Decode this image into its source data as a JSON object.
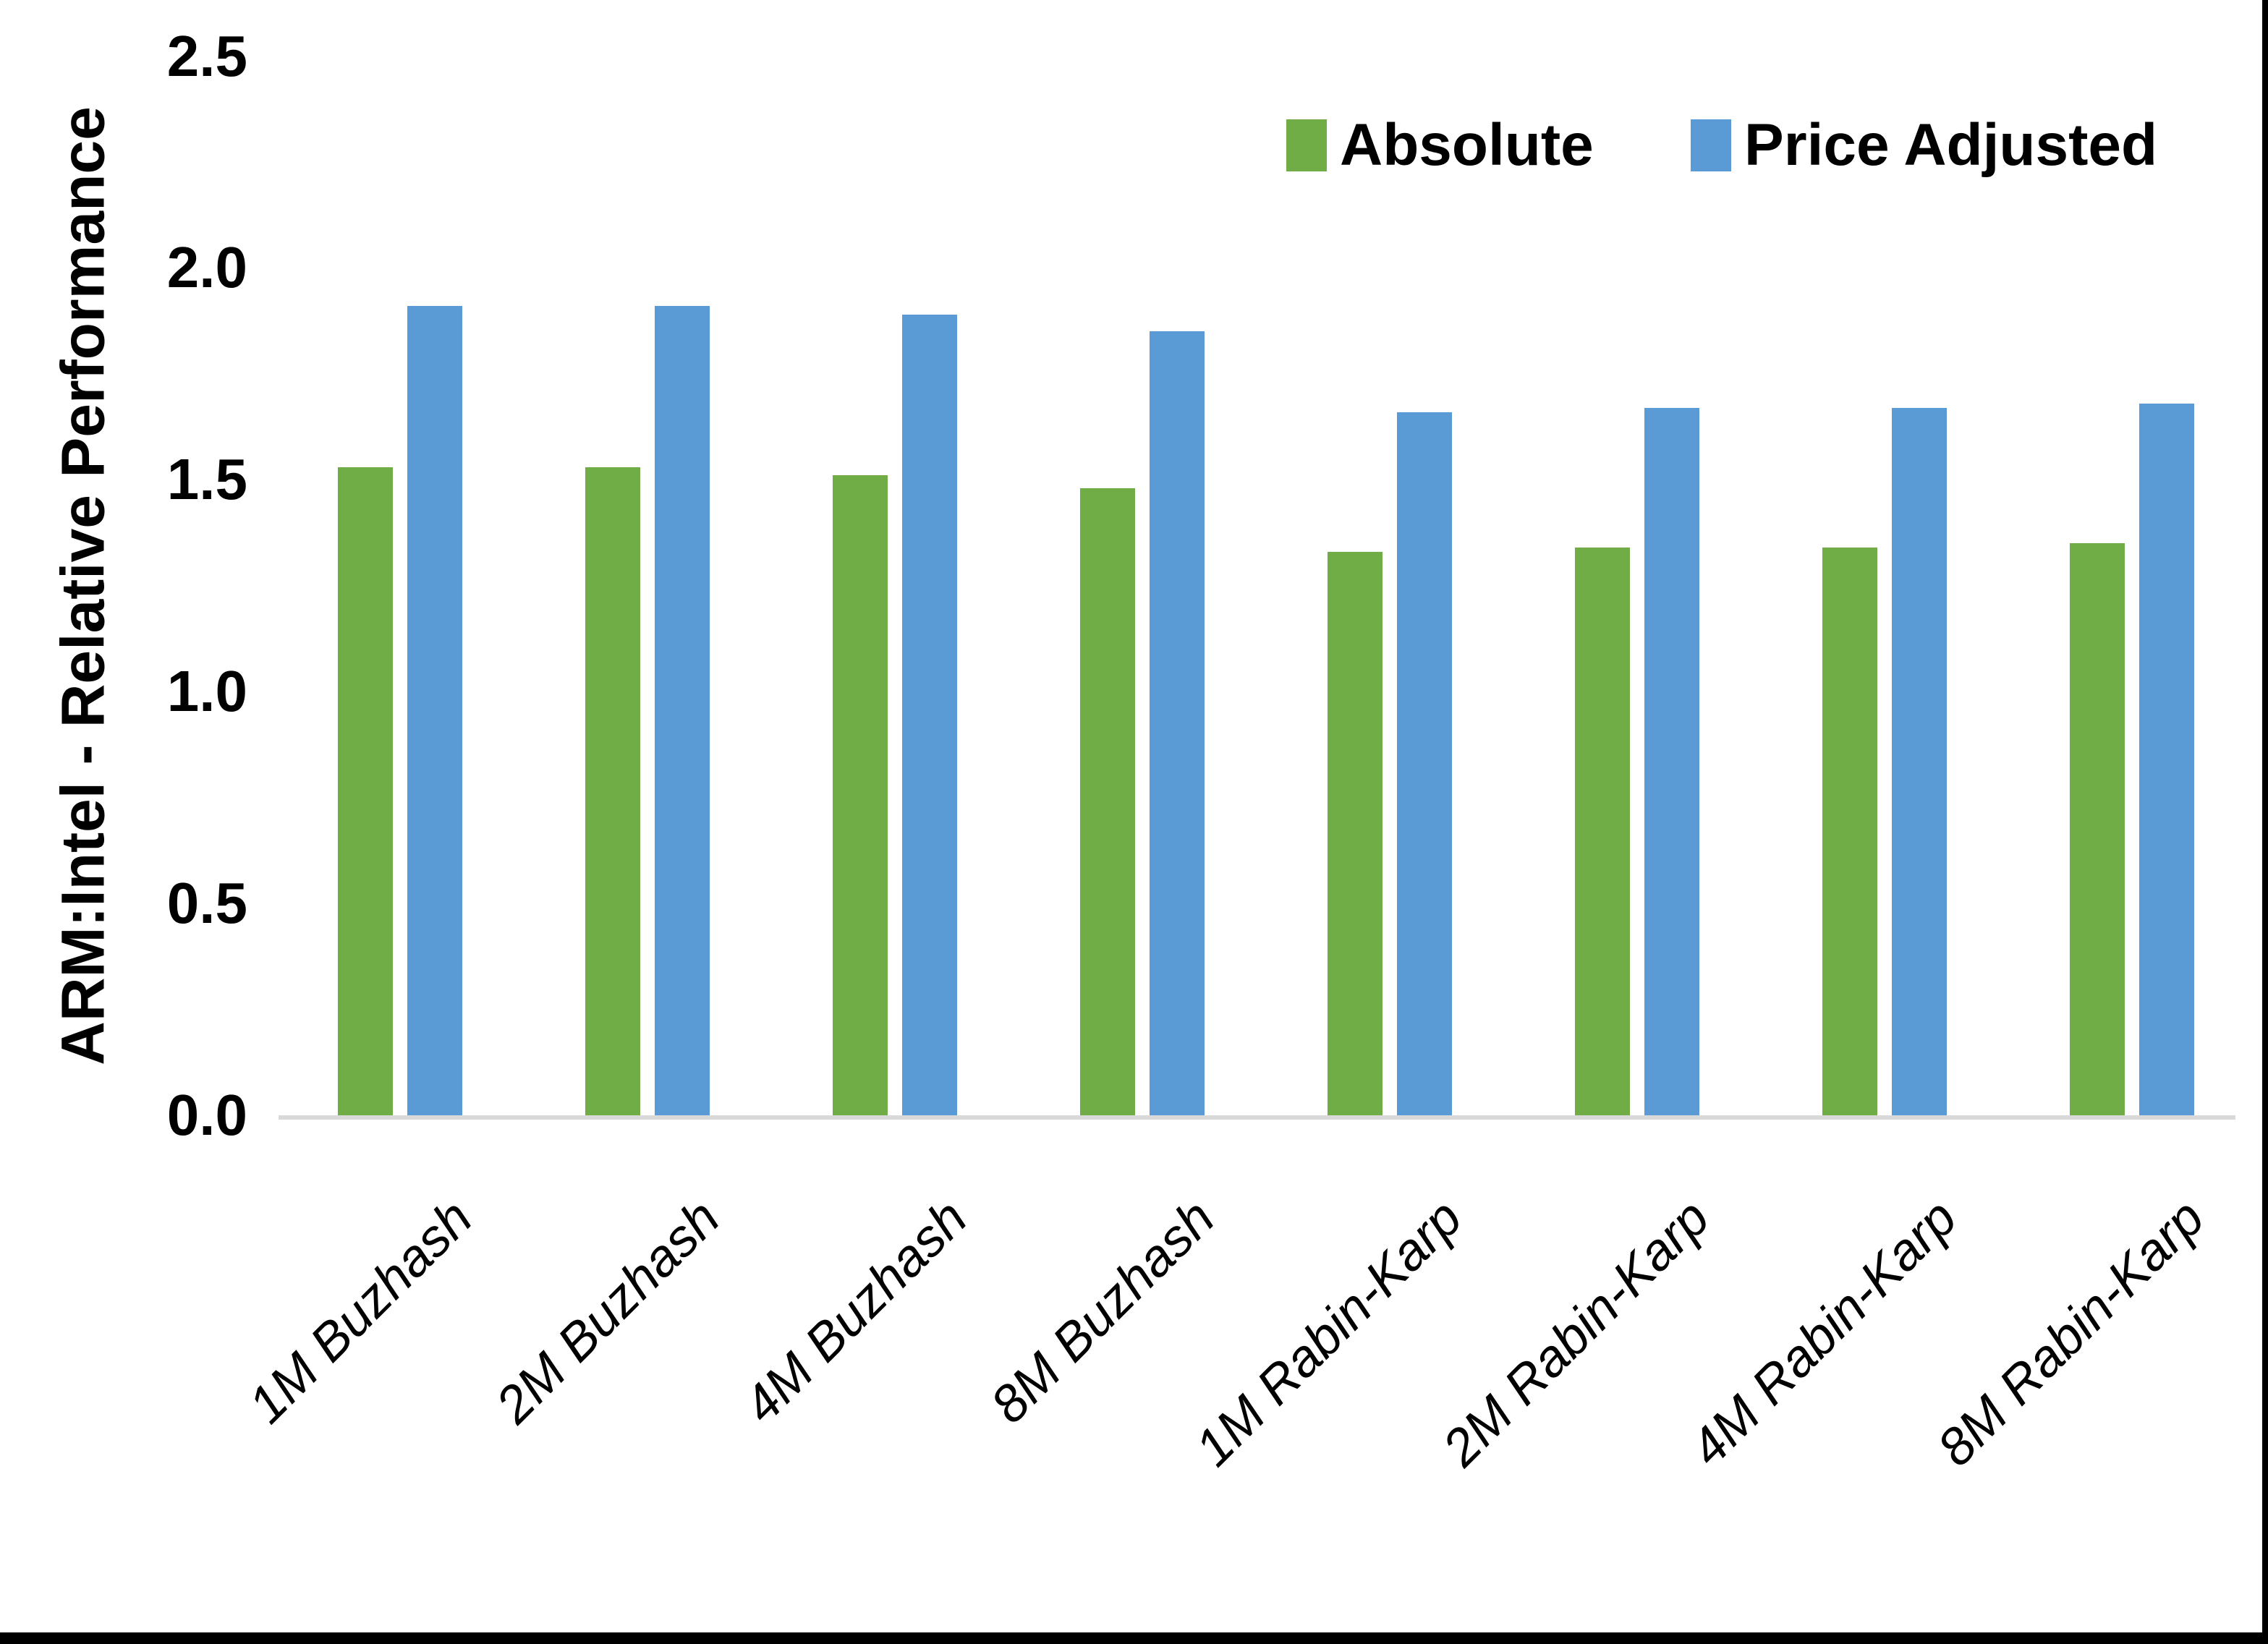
{
  "chart_data": {
    "type": "bar",
    "title": "",
    "categories": [
      "1M Buzhash",
      "2M Buzhash",
      "4M Buzhash",
      "8M Buzhash",
      "1M Rabin-Karp",
      "2M Rabin-Karp",
      "4M Rabin-Karp",
      "8M Rabin-Karp"
    ],
    "series": [
      {
        "name": "Absolute",
        "color": "#70AD47",
        "values": [
          1.53,
          1.53,
          1.51,
          1.48,
          1.33,
          1.34,
          1.34,
          1.35
        ]
      },
      {
        "name": "Price Adjusted",
        "color": "#5B9BD5",
        "values": [
          1.91,
          1.91,
          1.89,
          1.85,
          1.66,
          1.67,
          1.67,
          1.68
        ]
      }
    ],
    "xlabel": "",
    "ylabel": "ARM:Intel - Relative Performance",
    "ylim": [
      0,
      2.5
    ],
    "yticks": [
      0.0,
      0.5,
      1.0,
      1.5,
      2.0,
      2.5
    ],
    "ytick_labels": [
      "0.0",
      "0.5",
      "1.0",
      "1.5",
      "2.0",
      "2.5"
    ],
    "grid": false,
    "legend_position": "top-right",
    "axis_line_color": "#D9D9D9"
  }
}
